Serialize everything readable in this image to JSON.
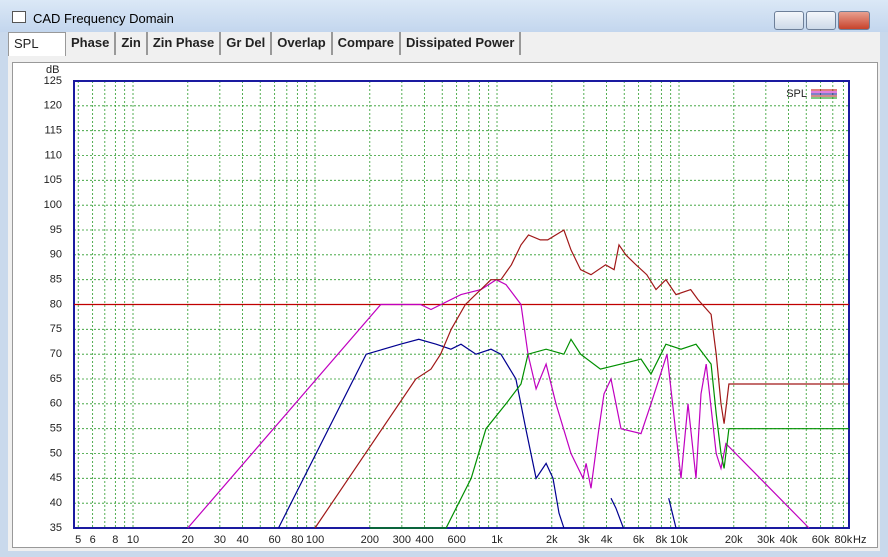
{
  "window": {
    "title": "CAD Frequency Domain",
    "tabs": [
      "SPL",
      "Phase",
      "Zin",
      "Zin Phase",
      "Gr Del",
      "Overlap",
      "Compare",
      "Dissipated Power"
    ]
  },
  "chart_data": {
    "type": "line",
    "x_scale": "log",
    "grid": true,
    "y_label": "dB",
    "x_unit": "Hz",
    "legend": {
      "label": "SPL",
      "position": "top-right"
    },
    "xlim": [
      4.74,
      85900
    ],
    "ylim": [
      35,
      125
    ],
    "yticks": [
      35,
      40,
      45,
      50,
      55,
      60,
      65,
      70,
      75,
      80,
      85,
      90,
      95,
      100,
      105,
      110,
      115,
      120,
      125
    ],
    "xticks": [
      5,
      6,
      8,
      10,
      20,
      30,
      40,
      60,
      80,
      100,
      200,
      300,
      400,
      600,
      {
        "value": 1000,
        "label": "1k"
      },
      {
        "value": 2000,
        "label": "2k"
      },
      {
        "value": 3000,
        "label": "3k"
      },
      {
        "value": 4000,
        "label": "4k"
      },
      {
        "value": 6000,
        "label": "6k"
      },
      {
        "value": 8000,
        "label": "8k"
      },
      {
        "value": 10000,
        "label": "10k"
      },
      {
        "value": 20000,
        "label": "20k"
      },
      {
        "value": 30000,
        "label": "30k"
      },
      {
        "value": 40000,
        "label": "40k"
      },
      {
        "value": 60000,
        "label": "60k"
      },
      {
        "value": 80000,
        "label": "80k"
      }
    ],
    "xminor": [
      7,
      9,
      50,
      70,
      90,
      500,
      700,
      800,
      900,
      5000,
      7000,
      9000,
      50000,
      70000
    ],
    "series": [
      {
        "color": "#c00000",
        "x": [
          4.74,
          85900
        ],
        "values": [
          80,
          80
        ]
      },
      {
        "color": "#c000c0",
        "x": [
          20,
          230,
          380,
          434,
          634,
          817,
          990,
          1120,
          1355,
          1480,
          1640,
          1860,
          2110,
          2550,
          2970,
          3085,
          3285,
          3630,
          3870,
          4230,
          4800,
          6180,
          7020,
          8590,
          10250,
          11200,
          12400,
          13200,
          14100,
          16000,
          17000,
          18100,
          51800
        ],
        "values": [
          35,
          80,
          80,
          79,
          82,
          83,
          85,
          84,
          80,
          70,
          63,
          68,
          60,
          50,
          45,
          48,
          43,
          55,
          62,
          65,
          55,
          54,
          60,
          70,
          45,
          60,
          45,
          62,
          68,
          50,
          47,
          52,
          35
        ]
      },
      {
        "color": "#000090",
        "x": [
          63,
          191,
          295,
          372,
          463,
          558,
          634,
          767,
          927,
          1050,
          1270,
          1440,
          1640,
          1860,
          2030,
          2190,
          2330,
          3700,
          4230,
          4500,
          4950,
          7900,
          8780,
          9620
        ],
        "values": [
          35,
          70,
          72,
          73,
          72,
          71,
          72,
          70,
          71,
          70,
          65,
          55,
          45,
          48,
          45,
          38,
          35,
          null,
          41,
          39,
          35,
          null,
          41,
          35
        ]
      },
      {
        "color": "#a01818",
        "x": [
          100,
          358,
          434,
          490,
          560,
          670,
          927,
          1050,
          1200,
          1355,
          1490,
          1730,
          1900,
          2330,
          2550,
          2880,
          3285,
          3950,
          4400,
          4680,
          5100,
          5800,
          6650,
          7470,
          8470,
          9620,
          11600,
          12700,
          15000,
          16000,
          17000,
          17700,
          18800,
          85900
        ],
        "values": [
          35,
          65,
          67,
          70,
          75,
          80,
          85,
          85,
          88,
          92,
          94,
          93,
          93,
          95,
          91,
          87,
          86,
          88,
          87,
          92,
          90,
          88,
          86,
          83,
          85,
          82,
          83,
          81,
          78,
          70,
          60,
          56,
          64,
          64
        ]
      },
      {
        "color": "#009000",
        "x": [
          200,
          525,
          721,
          870,
          1120,
          1355,
          1480,
          1860,
          2330,
          2550,
          2880,
          3700,
          4800,
          6180,
          7020,
          8470,
          10250,
          12400,
          15000,
          16000,
          17000,
          17700,
          18800,
          85900
        ],
        "values": [
          35,
          35,
          45,
          55,
          60,
          64,
          70,
          71,
          70,
          73,
          70,
          67,
          68,
          69,
          66,
          72,
          71,
          72,
          68,
          58,
          50,
          47,
          55,
          55
        ]
      }
    ]
  }
}
